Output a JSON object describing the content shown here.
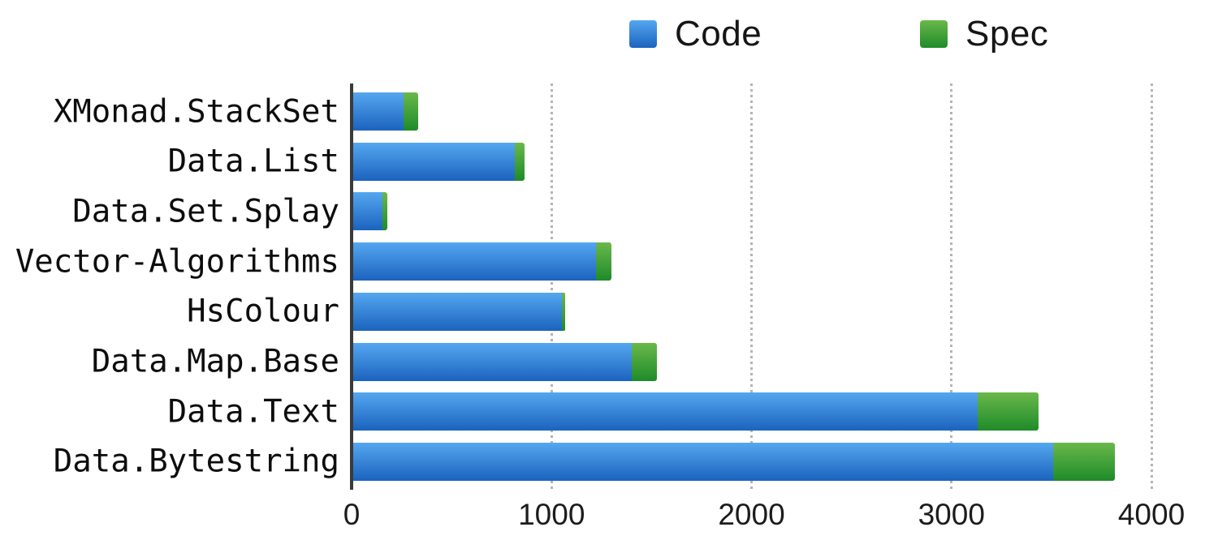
{
  "chart_data": {
    "type": "bar",
    "orientation": "horizontal",
    "stacked": true,
    "title": "",
    "xlabel": "",
    "ylabel": "",
    "xlim": [
      0,
      4000
    ],
    "x_ticks": [
      0,
      1000,
      2000,
      3000,
      4000
    ],
    "grid": "vertical-dotted",
    "legend_position": "top",
    "categories": [
      "XMonad.StackSet",
      "Data.List",
      "Data.Set.Splay",
      "Vector-Algorithms",
      "HsColour",
      "Data.Map.Base",
      "Data.Text",
      "Data.Bytestring"
    ],
    "series": [
      {
        "name": "Code",
        "values": [
          256,
          814,
          149,
          1219,
          1047,
          1396,
          3128,
          3505
        ],
        "color_top": "#55a7f0",
        "color_bottom": "#1b63be"
      },
      {
        "name": "Spec",
        "values": [
          74,
          46,
          27,
          76,
          19,
          125,
          305,
          307
        ],
        "color_top": "#6ab84a",
        "color_bottom": "#1e8b29"
      }
    ],
    "colors": {
      "gridline": "#b4b4b4",
      "axis": "#3a3a3a",
      "text": "#161616"
    }
  }
}
